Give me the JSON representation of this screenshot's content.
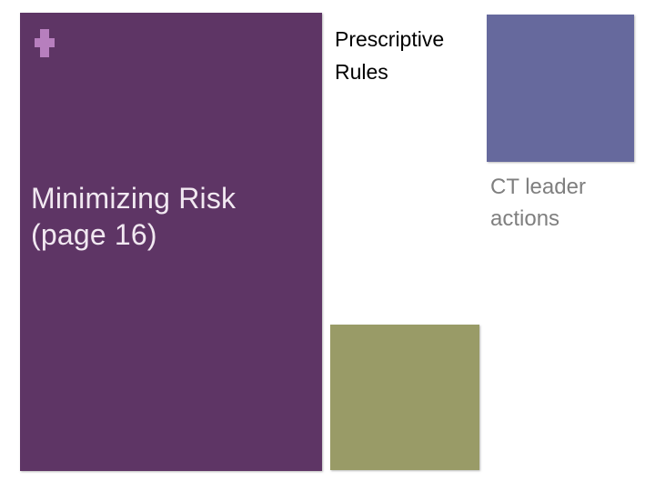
{
  "slide": {
    "background_color": "#ffffff",
    "decor": {
      "plus_icon_glyph": "+",
      "plus_color": "#b77fbe",
      "title_panel_color": "#5e3565",
      "blue_square_color": "#66699d",
      "olive_square_color": "#999b67"
    },
    "title": {
      "text": "Minimizing Risk (page 16)",
      "lines": [
        "Minimizing Risk",
        "(page 16)"
      ],
      "color": "#f1e8f1"
    },
    "subtitle": {
      "text": "Prescriptive Rules",
      "lines": [
        "Prescriptive",
        "Rules"
      ],
      "color": "#000000"
    },
    "side_note": {
      "text": "CT leader actions",
      "lines": [
        "CT leader",
        "actions"
      ],
      "color": "#7f7f7f"
    }
  }
}
